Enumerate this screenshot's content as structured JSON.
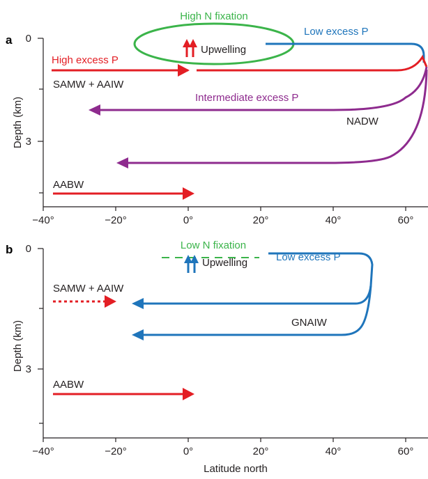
{
  "colors": {
    "red": "#e31e24",
    "blue": "#1f75bb",
    "purple": "#8e2b8e",
    "green": "#3bb44a",
    "black": "#231f20"
  },
  "axes": {
    "xlabel": "Latitude north",
    "ylabel": "Depth (km)",
    "x_ticks": [
      "−40°",
      "−20°",
      "0°",
      "20°",
      "40°",
      "60°"
    ],
    "y_ticks": [
      "0",
      "3"
    ]
  },
  "panel_a": {
    "letter": "a",
    "labels": {
      "high_n_fixation": "High N fixation",
      "low_excess_p": "Low excess P",
      "high_excess_p": "High excess P",
      "upwelling": "Upwelling",
      "samw_aaiw": "SAMW + AAIW",
      "intermediate_excess_p": "Intermediate excess P",
      "nadw": "NADW",
      "aabw": "AABW"
    }
  },
  "panel_b": {
    "letter": "b",
    "labels": {
      "low_n_fixation": "Low N fixation",
      "low_excess_p": "Low excess P",
      "upwelling": "Upwelling",
      "samw_aaiw": "SAMW + AAIW",
      "gnaiw": "GNAIW",
      "aabw": "AABW"
    }
  }
}
